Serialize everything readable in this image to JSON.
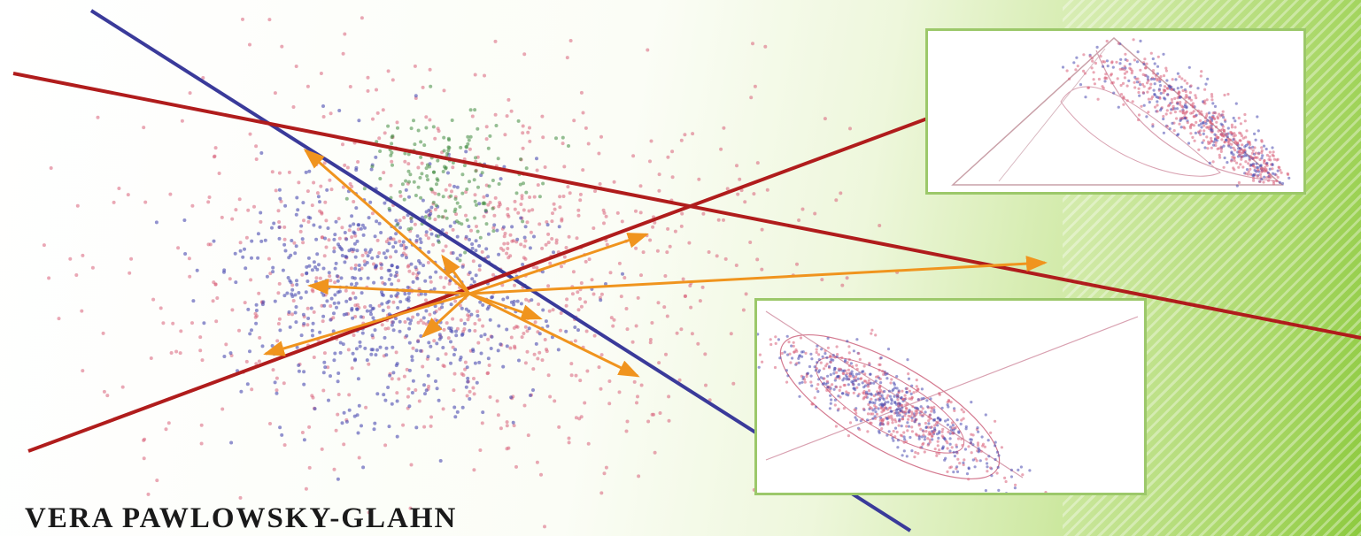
{
  "cover": {
    "author": "VERA PAWLOWSKY-GLAHN",
    "colors": {
      "red_line": "#b01c1c",
      "blue_line": "#3a3a9a",
      "orange_arrow": "#f0941e",
      "point_red": "#d9607a",
      "point_blue": "#4a4ab0",
      "point_green": "#3f8a3f",
      "inset_border": "#9cc86a",
      "background_green": "#8dca3f"
    }
  }
}
